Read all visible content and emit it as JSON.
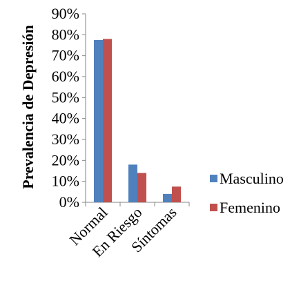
{
  "chart_data": {
    "type": "bar",
    "title": "",
    "xlabel": "",
    "ylabel": "Prevalencia de Depresión",
    "categories": [
      "Normal",
      "En Riesgo",
      "Síntomas"
    ],
    "series": [
      {
        "name": "Masculino",
        "values": [
          0.775,
          0.18,
          0.04
        ],
        "color": "#4F81BD"
      },
      {
        "name": "Femenino",
        "values": [
          0.78,
          0.14,
          0.075
        ],
        "color": "#C0504D"
      }
    ],
    "ylim": [
      0,
      0.9
    ],
    "yticks": [
      "0%",
      "10%",
      "20%",
      "30%",
      "40%",
      "50%",
      "60%",
      "70%",
      "80%",
      "90%"
    ],
    "grid": false,
    "legend_position": "right"
  }
}
